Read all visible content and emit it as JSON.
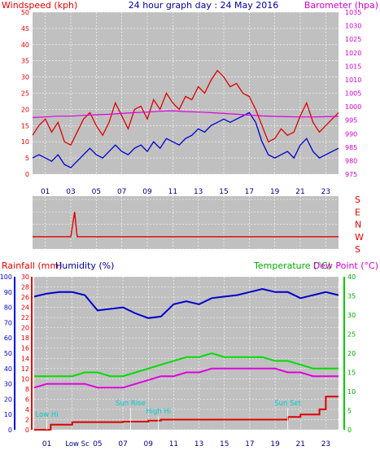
{
  "header": {
    "windspeed_label": "Windspeed (kph)",
    "title": "24 hour graph day : 24 May 2016",
    "barometer_label": "Barometer (hpa)"
  },
  "colors": {
    "red": "#e00000",
    "blue": "#0000cc",
    "magenta": "#e000e0",
    "green": "#00dd00",
    "cyan": "#00cccc",
    "plot_bg": "#c0c0c0"
  },
  "hour_labels": [
    "01",
    "03",
    "05",
    "07",
    "09",
    "11",
    "13",
    "15",
    "17",
    "19",
    "21",
    "23"
  ],
  "chart_data": [
    {
      "type": "line",
      "panel": "wind-barometer",
      "x_range_hours": [
        0,
        24
      ],
      "left_axis": {
        "label": "Windspeed (kph)",
        "ylim": [
          0,
          50
        ],
        "ticks": [
          0,
          5,
          10,
          15,
          20,
          25,
          30,
          35,
          40,
          45,
          50
        ]
      },
      "right_axis": {
        "label": "Barometer (hpa)",
        "ylim": [
          975,
          1035
        ],
        "ticks": [
          975,
          980,
          985,
          990,
          995,
          1000,
          1005,
          1010,
          1015,
          1020,
          1025,
          1030,
          1035
        ]
      },
      "series": [
        {
          "color": "red",
          "axis": "left",
          "x": [
            0,
            0.5,
            1,
            1.5,
            2,
            2.5,
            3,
            3.5,
            4,
            4.5,
            5,
            5.5,
            6,
            6.5,
            7,
            7.5,
            8,
            8.5,
            9,
            9.5,
            10,
            10.5,
            11,
            11.5,
            12,
            12.5,
            13,
            13.5,
            14,
            14.5,
            15,
            15.5,
            16,
            16.5,
            17,
            17.5,
            18,
            18.5,
            19,
            19.5,
            20,
            20.5,
            21,
            21.5,
            22,
            22.5,
            23,
            23.5,
            24
          ],
          "values": [
            12,
            15,
            17,
            13,
            16,
            10,
            9,
            13,
            17,
            19,
            15,
            12,
            16,
            22,
            18,
            14,
            20,
            21,
            17,
            23,
            20,
            25,
            22,
            20,
            24,
            23,
            27,
            25,
            29,
            32,
            30,
            27,
            28,
            25,
            24,
            20,
            15,
            10,
            11,
            14,
            12,
            13,
            18,
            22,
            16,
            13,
            15,
            17,
            19
          ]
        },
        {
          "color": "blue",
          "axis": "left",
          "x": [
            0,
            0.5,
            1,
            1.5,
            2,
            2.5,
            3,
            3.5,
            4,
            4.5,
            5,
            5.5,
            6,
            6.5,
            7,
            7.5,
            8,
            8.5,
            9,
            9.5,
            10,
            10.5,
            11,
            11.5,
            12,
            12.5,
            13,
            13.5,
            14,
            14.5,
            15,
            15.5,
            16,
            16.5,
            17,
            17.5,
            18,
            18.5,
            19,
            19.5,
            20,
            20.5,
            21,
            21.5,
            22,
            22.5,
            23,
            23.5,
            24
          ],
          "values": [
            5,
            6,
            5,
            4,
            6,
            3,
            2,
            4,
            6,
            8,
            6,
            5,
            7,
            9,
            7,
            6,
            8,
            9,
            7,
            10,
            8,
            11,
            10,
            9,
            11,
            12,
            14,
            13,
            15,
            16,
            17,
            16,
            17,
            18,
            19,
            16,
            10,
            6,
            5,
            6,
            7,
            5,
            9,
            11,
            7,
            5,
            6,
            7,
            8
          ]
        },
        {
          "color": "magenta",
          "axis": "right",
          "x": [
            0,
            1,
            2,
            3,
            4,
            5,
            6,
            7,
            8,
            9,
            10,
            11,
            12,
            13,
            14,
            15,
            16,
            17,
            18,
            19,
            20,
            21,
            22,
            23,
            24
          ],
          "values": [
            996,
            996.2,
            996.5,
            996.5,
            996.8,
            997,
            997.2,
            997.5,
            997.8,
            998,
            998.3,
            998.5,
            998.2,
            998,
            997.8,
            997.5,
            997.2,
            996.9,
            996.6,
            996.4,
            996.3,
            996.2,
            996.2,
            996.3,
            996.4
          ]
        }
      ]
    },
    {
      "type": "line",
      "panel": "wind-direction",
      "x_range_hours": [
        0,
        24
      ],
      "right_axis": {
        "ticks": [
          "S",
          "E",
          "N",
          "W",
          "S"
        ]
      },
      "series": [
        {
          "color": "red",
          "x": [
            0,
            1,
            2,
            3,
            3.3,
            3.5,
            3.7,
            4,
            5,
            6,
            7,
            8,
            9,
            10,
            11,
            12,
            13,
            14,
            15,
            16,
            17,
            18,
            19,
            20,
            21,
            22,
            23,
            24
          ],
          "values": [
            "W",
            "W",
            "W",
            "W",
            "E",
            "W",
            "W",
            "W",
            "W",
            "W",
            "W",
            "W",
            "W",
            "W",
            "W",
            "W",
            "W",
            "W",
            "W",
            "W",
            "W",
            "W",
            "W",
            "W",
            "W",
            "W",
            "W",
            "W"
          ]
        }
      ]
    },
    {
      "type": "line",
      "panel": "rain-humidity-temperature",
      "x_range_hours": [
        0,
        24
      ],
      "labels": {
        "rainfall": "Rainfall (mm)",
        "humidity": "Humidity (%)",
        "temperature": "Temperature (°C)",
        "dew_point": "Dew Point (°C)"
      },
      "humidity_axis": {
        "ylim": [
          0,
          100
        ],
        "ticks": [
          0,
          10,
          20,
          30,
          40,
          50,
          60,
          70,
          80,
          90,
          100
        ]
      },
      "rain_axis": {
        "ylim": [
          0,
          30
        ],
        "ticks": [
          0,
          2,
          4,
          6,
          8,
          10,
          12,
          14,
          16,
          18,
          20,
          22,
          24,
          26,
          28,
          30
        ]
      },
      "temp_axis": {
        "ylim": [
          0,
          40
        ],
        "ticks": [
          0,
          5,
          10,
          15,
          20,
          25,
          30,
          35,
          40
        ]
      },
      "series": [
        {
          "color": "blue",
          "axis": "humidity",
          "x": [
            0,
            1,
            2,
            3,
            4,
            5,
            6,
            7,
            8,
            9,
            10,
            11,
            12,
            13,
            14,
            15,
            16,
            17,
            18,
            19,
            20,
            21,
            22,
            23,
            24
          ],
          "values": [
            87,
            89,
            90,
            90,
            88,
            78,
            79,
            80,
            76,
            73,
            74,
            82,
            84,
            82,
            86,
            87,
            88,
            90,
            92,
            90,
            90,
            86,
            88,
            90,
            88
          ]
        },
        {
          "color": "magenta",
          "axis": "temperature",
          "x": [
            0,
            1,
            2,
            3,
            4,
            5,
            6,
            7,
            8,
            9,
            10,
            11,
            12,
            13,
            14,
            15,
            16,
            17,
            18,
            19,
            20,
            21,
            22,
            23,
            24
          ],
          "values": [
            11,
            12,
            12,
            12,
            12,
            11,
            11,
            11,
            12,
            13,
            14,
            14,
            15,
            15,
            16,
            16,
            16,
            16,
            16,
            16,
            15,
            15,
            14,
            14,
            14
          ]
        },
        {
          "color": "green",
          "axis": "temperature",
          "x": [
            0,
            1,
            2,
            3,
            4,
            5,
            6,
            7,
            8,
            9,
            10,
            11,
            12,
            13,
            14,
            15,
            16,
            17,
            18,
            19,
            20,
            21,
            22,
            23,
            24
          ],
          "values": [
            14,
            14,
            14,
            14,
            15,
            15,
            14,
            14,
            15,
            16,
            17,
            18,
            19,
            19,
            20,
            19,
            19,
            19,
            19,
            18,
            18,
            17,
            16,
            16,
            16
          ]
        },
        {
          "color": "red",
          "axis": "rainfall",
          "x": [
            0,
            0.2,
            1,
            1.3,
            2,
            3,
            4,
            5,
            6,
            7,
            8,
            9,
            10,
            11,
            12,
            13,
            14,
            15,
            16,
            17,
            18,
            19,
            20,
            21,
            22,
            22.5,
            23,
            24
          ],
          "values": [
            0,
            0,
            0,
            1,
            1,
            1.5,
            1.5,
            1.5,
            1.5,
            1.6,
            1.6,
            1.8,
            2,
            2,
            2,
            2,
            2,
            2,
            2,
            2,
            2,
            2,
            2.5,
            3,
            3,
            4,
            6.5,
            6.5
          ]
        }
      ],
      "annotations": [
        "Low Hi",
        "Low Sc",
        "Sun Rise",
        "High Hi",
        "Sun Set"
      ]
    }
  ]
}
